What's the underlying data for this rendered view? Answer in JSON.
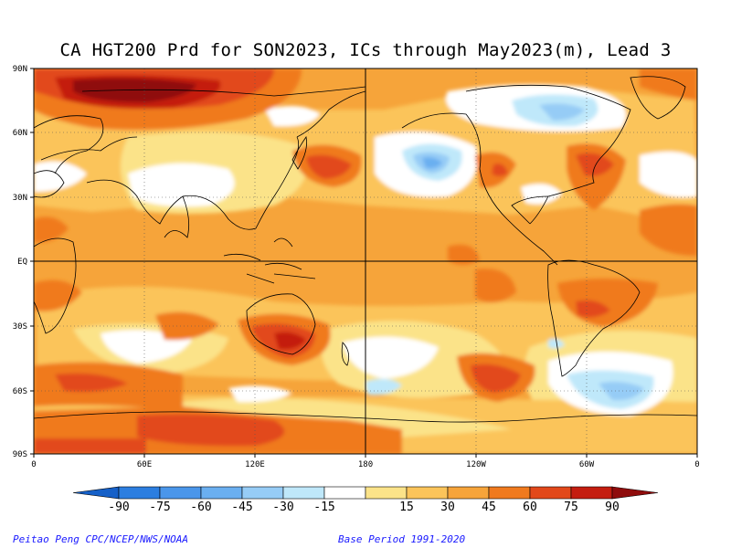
{
  "title": "CA HGT200 Prd for SON2023, ICs through May2023(m), Lead 3",
  "lat_labels": [
    "90N",
    "60N",
    "30N",
    "EQ",
    "30S",
    "60S",
    "90S"
  ],
  "lon_labels": [
    "0",
    "60E",
    "120E",
    "180",
    "120W",
    "60W",
    "0"
  ],
  "colorbar": {
    "ticks": [
      "-90",
      "-75",
      "-60",
      "-45",
      "-30",
      "-15",
      "15",
      "30",
      "45",
      "60",
      "75",
      "90"
    ],
    "colors": [
      "#1560c8",
      "#2c7ee0",
      "#4a96ea",
      "#6aaff0",
      "#96ccf6",
      "#bfe8fa",
      "#ffffff",
      "#fbe389",
      "#fbc45a",
      "#f6a43a",
      "#f07a1e",
      "#e2481a",
      "#c41d10",
      "#8f0c0c"
    ]
  },
  "credit_left": "Peitao Peng CPC/NCEP/NWS/NOAA",
  "credit_right": "Base Period 1991-2020"
}
